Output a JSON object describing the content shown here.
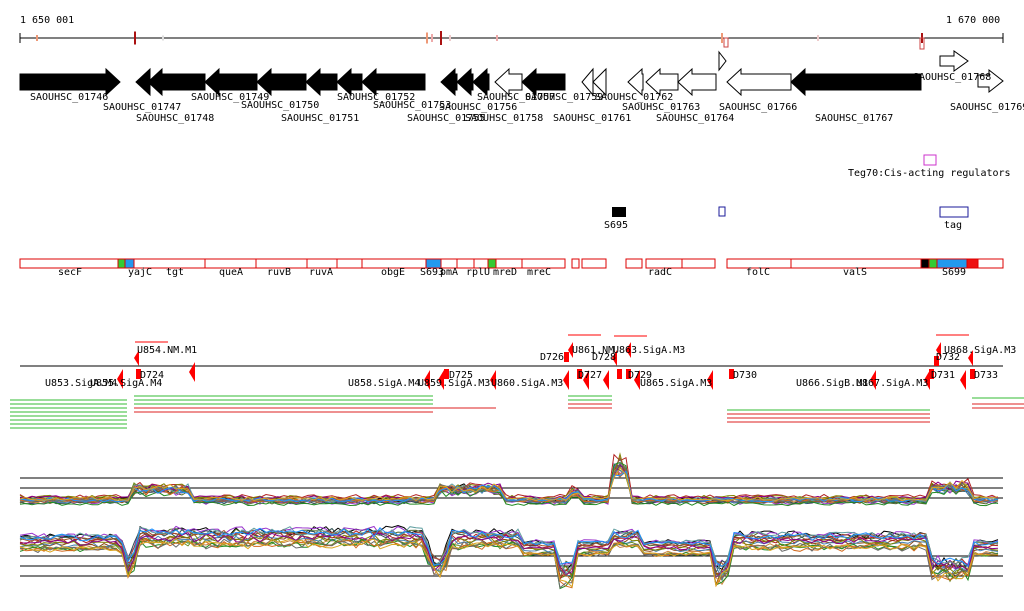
{
  "ruler": {
    "start_label": "1 650 001",
    "end_label": "1 670 000"
  },
  "genes": [
    "SAOUHSC_01746",
    "SAOUHSC_01747",
    "SAOUHSC_01748",
    "SAOUHSC_01749",
    "SAOUHSC_01750",
    "SAOUHSC_01751",
    "SAOUHSC_01752",
    "SAOUHSC_01753",
    "SAOUHSC_01755",
    "SAOUHSC_01756",
    "SAOUHSC_01757",
    "SAOUHSC_01758",
    "SAOUHSC_01759",
    "SAOUHSC_01761",
    "SAOUHSC_01762",
    "SAOUHSC_01763",
    "SAOUHSC_01764",
    "SAOUHSC_01766",
    "SAOUHSC_01767",
    "SAOUHSC_01768",
    "SAOUHSC_01769"
  ],
  "regulator_track": {
    "label": "Teg70:Cis-acting regulators",
    "color": "#cc33cc"
  },
  "srna_marks": [
    "S695",
    "tag"
  ],
  "operon_labels": [
    "secF",
    "yajC",
    "tgt",
    "queA",
    "ruvB",
    "ruvA",
    "obgE",
    "S693",
    "pmA",
    "rplU",
    "mreD",
    "mreC",
    "radC",
    "folC",
    "valS",
    "S699"
  ],
  "tu_labels": [
    "U854.NM.M1",
    "D724",
    "U858.SigA.M4",
    "U859.SigA.M3",
    "D725",
    "U860.SigA.M3",
    "D726",
    "U861.NM",
    "D728",
    "U863.SigA.M3",
    "D727",
    "D729",
    "U865.SigA.M3",
    "D730",
    "U866.SigB.M1",
    "U867.SigA.M3",
    "U868.SigA.M3",
    "D732",
    "D731",
    "D733",
    "U853.SigA.M4",
    "U855.SigA.M4"
  ],
  "colors": {
    "forward_gene": "#000000",
    "reverse_gene": "#ffffff",
    "operon_box": "#dd0000",
    "tu_marker": "#ff0000",
    "segment_green": "#33cc33",
    "segment_blue": "#2299ee"
  }
}
